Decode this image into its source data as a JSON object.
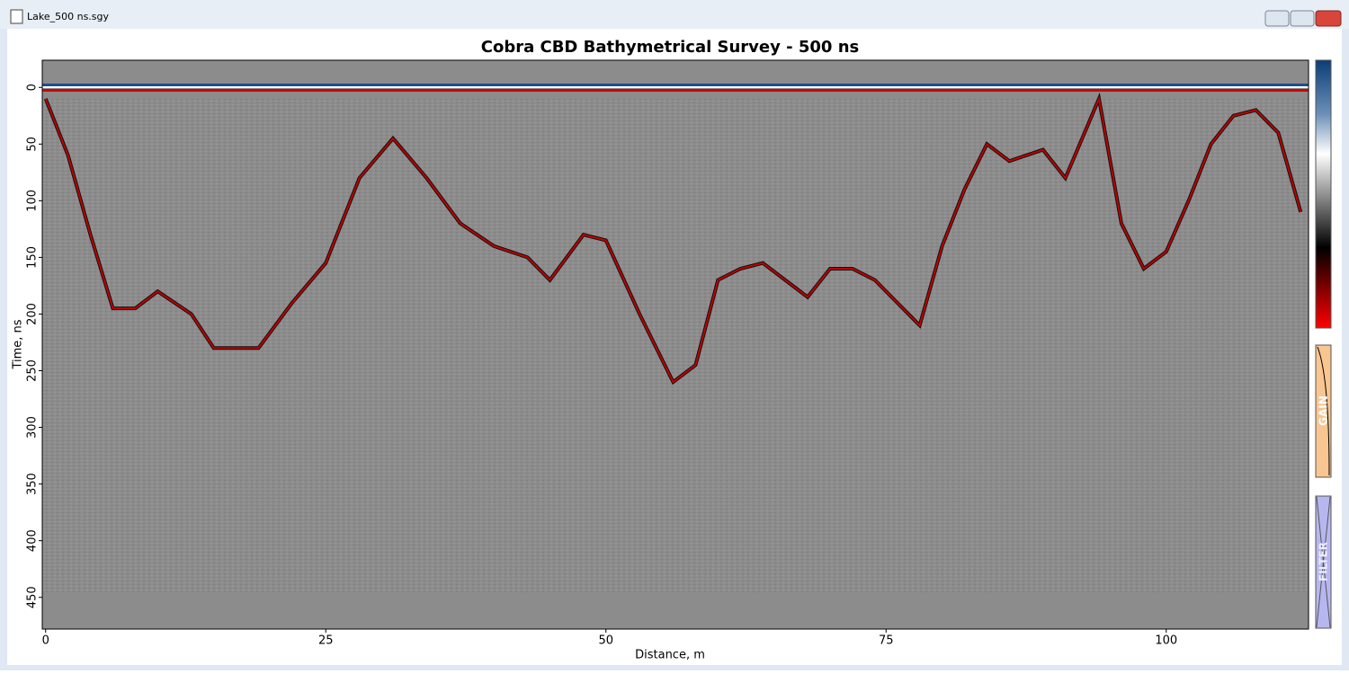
{
  "window": {
    "title": "Lake_500 ns.sgy"
  },
  "panels": {
    "gain": "GAIN",
    "filter": "FILTER"
  },
  "chart_data": {
    "type": "radargram",
    "title": "Cobra CBD Bathymetrical Survey - 500 ns",
    "x_label": "Distance, m",
    "y_label": "Time, ns",
    "xlim": [
      -0.3,
      112.7
    ],
    "ylim": [
      -24,
      478
    ],
    "xticks": [
      0,
      25,
      50,
      75,
      100
    ],
    "yticks": [
      0,
      50,
      100,
      150,
      200,
      250,
      300,
      350,
      400,
      450
    ],
    "color": "#c00000",
    "x": [
      0,
      2,
      4,
      6,
      8,
      10,
      13,
      15,
      17,
      19,
      22,
      25,
      28,
      31,
      34,
      37,
      40,
      43,
      45,
      48,
      50,
      53,
      56,
      58,
      60,
      62,
      64,
      66,
      68,
      70,
      72,
      74,
      76,
      78,
      80,
      82,
      84,
      86,
      89,
      91,
      94,
      96,
      98,
      100,
      102,
      104,
      106,
      108,
      110,
      112
    ],
    "values": [
      10,
      60,
      130,
      195,
      195,
      180,
      200,
      230,
      230,
      230,
      190,
      155,
      80,
      45,
      80,
      120,
      140,
      150,
      170,
      130,
      135,
      200,
      260,
      245,
      170,
      160,
      155,
      170,
      185,
      160,
      160,
      170,
      190,
      210,
      140,
      90,
      50,
      65,
      55,
      80,
      10,
      120,
      160,
      145,
      100,
      50,
      25,
      20,
      40,
      110
    ]
  }
}
